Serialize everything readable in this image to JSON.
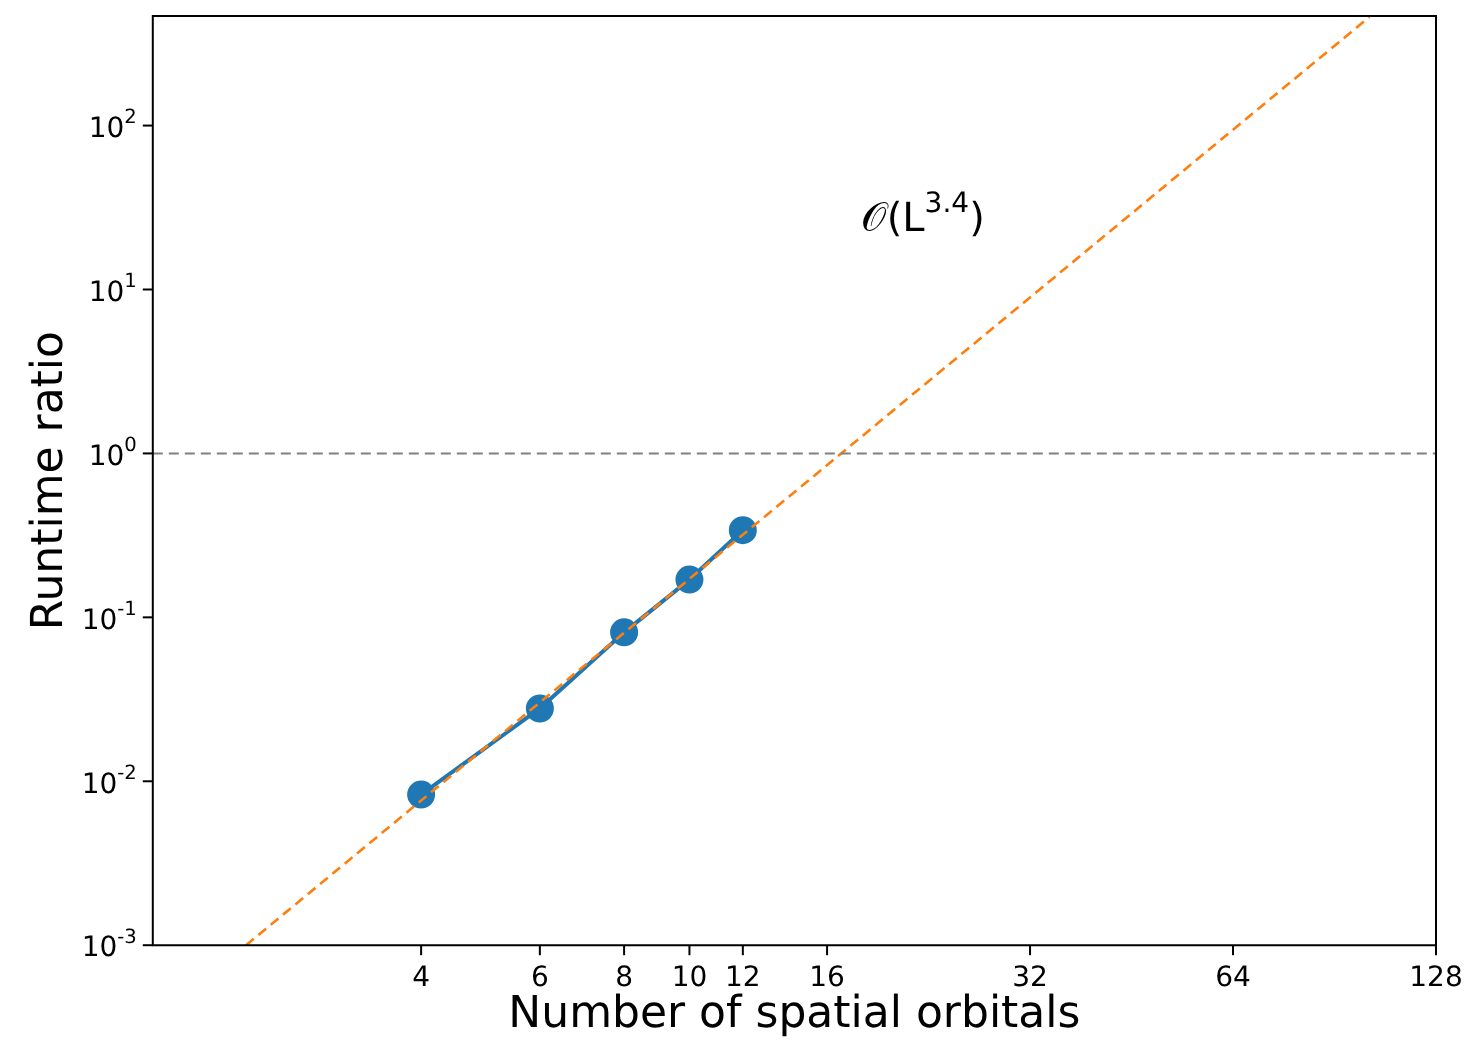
{
  "chart_data": {
    "type": "line",
    "xlabel": "Number of spatial orbitals",
    "ylabel": "Runtime ratio",
    "log": "xy",
    "grid": false,
    "legend": false,
    "xlim": [
      1.6,
      128
    ],
    "ylim": [
      0.001,
      466
    ],
    "xticks": [
      4,
      6,
      8,
      10,
      12,
      16,
      32,
      64,
      128
    ],
    "yticks": [
      {
        "value": 0.001,
        "label": "10$^{-3}$"
      },
      {
        "value": 0.01,
        "label": "10$^{-2}$"
      },
      {
        "value": 0.1,
        "label": "10$^{-1}$"
      },
      {
        "value": 1,
        "label": "10$^{0}$"
      },
      {
        "value": 10,
        "label": "10$^{1}$"
      },
      {
        "value": 100,
        "label": "10$^{2}$"
      }
    ],
    "series": [
      {
        "color": "#1f77b4",
        "marker": "circle",
        "line_style": "solid",
        "x": [
          4,
          6,
          8,
          10,
          12
        ],
        "values": [
          0.0083,
          0.0278,
          0.081,
          0.17,
          0.34
        ]
      },
      {
        "color": "#ff7f0e",
        "marker": "none",
        "line_style": "dashed",
        "x": [
          2.2,
          102
        ],
        "values": [
          0.001,
          460
        ]
      }
    ],
    "ref_lines": [
      {
        "axis": "y",
        "value": 1,
        "color": "#808080",
        "line_style": "dashed"
      }
    ],
    "annotations": [
      "𝒪(L$^{3.4}$)"
    ]
  }
}
